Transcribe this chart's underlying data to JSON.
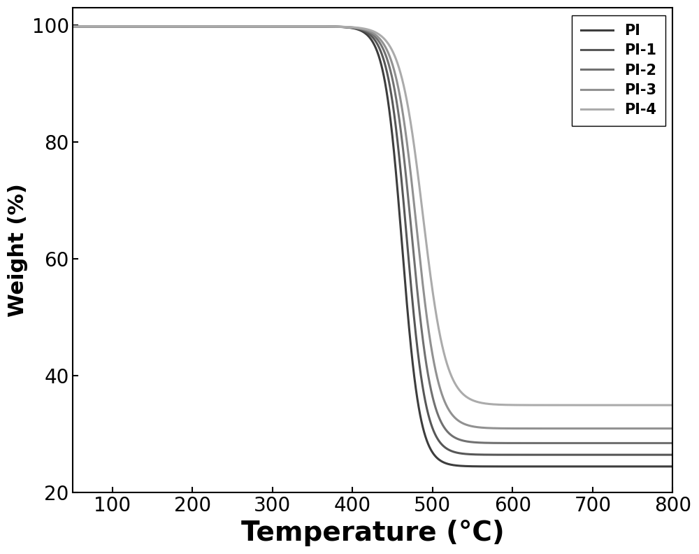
{
  "series": [
    {
      "label": "PI",
      "color": "#3d3d3d",
      "midpoint": 462,
      "steepness": 0.09,
      "final": 24.5
    },
    {
      "label": "PI-1",
      "color": "#575757",
      "midpoint": 468,
      "steepness": 0.085,
      "final": 26.5
    },
    {
      "label": "PI-2",
      "color": "#717171",
      "midpoint": 474,
      "steepness": 0.08,
      "final": 28.5
    },
    {
      "label": "PI-3",
      "color": "#919191",
      "midpoint": 480,
      "steepness": 0.075,
      "final": 31.0
    },
    {
      "label": "PI-4",
      "color": "#ababab",
      "midpoint": 488,
      "steepness": 0.07,
      "final": 35.0
    }
  ],
  "start_weight": 99.8,
  "xlabel": "Temperature (°C)",
  "ylabel": "Weight (%)",
  "xlim": [
    50,
    800
  ],
  "ylim": [
    20,
    103
  ],
  "xticks": [
    100,
    200,
    300,
    400,
    500,
    600,
    700,
    800
  ],
  "yticks": [
    20,
    40,
    60,
    80,
    100
  ],
  "background_color": "#ffffff",
  "legend_loc": "upper right",
  "legend_fontsize": 15,
  "xlabel_fontsize": 28,
  "ylabel_fontsize": 22,
  "tick_fontsize": 20,
  "linewidth": 2.2,
  "figsize": [
    10.0,
    7.92
  ],
  "dpi": 100
}
